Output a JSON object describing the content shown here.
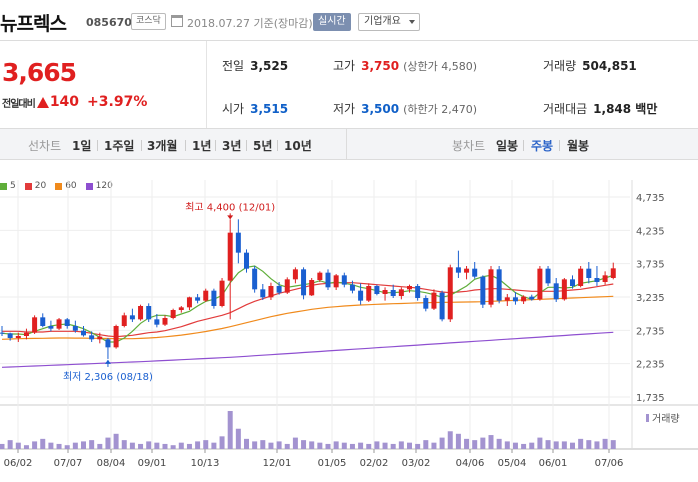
{
  "header": {
    "stock_name": "뉴프렉스",
    "stock_code": "085670",
    "market": "코스닥",
    "date_text": "2018.07.27  기준(장마감)",
    "realtime_button": "실시간",
    "info_select": "기업개요"
  },
  "quote": {
    "price": "3,665",
    "change_label": "전일대비",
    "change": "140",
    "change_pct": "+3.97%",
    "prev_close_label": "전일",
    "prev_close": "3,525",
    "open_label": "시가",
    "open": "3,515",
    "high_label": "고가",
    "high": "3,750",
    "upper_limit": "(상한가 4,580)",
    "low_label": "저가",
    "low": "3,500",
    "lower_limit": "(하한가 2,470)",
    "volume_label": "거래량",
    "volume": "504,851",
    "amount_label": "거래대금",
    "amount": "1,848 백만"
  },
  "toolbar": {
    "line_chart_label": "선차트",
    "periods": [
      "1일",
      "1주일",
      "3개월",
      "1년",
      "3년",
      "5년",
      "10년"
    ],
    "candle_label": "봉차트",
    "candle_options": [
      "일봉",
      "주봉",
      "월봉"
    ],
    "active_candle": "주봉"
  },
  "legend": [
    {
      "label": "5",
      "color": "#5fae3a"
    },
    {
      "label": "20",
      "color": "#e23b3b"
    },
    {
      "label": "60",
      "color": "#f08a1c"
    },
    {
      "label": "120",
      "color": "#8e4fd0"
    }
  ],
  "chart_data": {
    "type": "candlestick",
    "y_ticks": [
      "4,735",
      "4,235",
      "3,735",
      "3,235",
      "2,735",
      "2,235",
      "1,735"
    ],
    "ylim": [
      1735,
      4735
    ],
    "x_labels": [
      "06/02",
      "07/07",
      "08/04",
      "09/01",
      "10/13",
      "12/01",
      "01/05",
      "02/02",
      "03/02",
      "04/06",
      "05/04",
      "06/01",
      "07/06"
    ],
    "annotations": {
      "high": {
        "text": "최고 4,400 (12/01)",
        "value": 4400,
        "week": 28
      },
      "low": {
        "text": "최저 2,306 (08/18)",
        "value": 2306,
        "week": 13
      }
    },
    "candles": [
      [
        2700,
        2800,
        2650,
        2690
      ],
      [
        2690,
        2700,
        2580,
        2620
      ],
      [
        2620,
        2700,
        2560,
        2650
      ],
      [
        2650,
        2760,
        2600,
        2700
      ],
      [
        2700,
        2960,
        2680,
        2930
      ],
      [
        2930,
        2990,
        2780,
        2800
      ],
      [
        2800,
        2880,
        2720,
        2760
      ],
      [
        2760,
        2920,
        2740,
        2900
      ],
      [
        2900,
        2920,
        2760,
        2800
      ],
      [
        2800,
        2880,
        2700,
        2730
      ],
      [
        2730,
        2800,
        2640,
        2660
      ],
      [
        2660,
        2720,
        2560,
        2600
      ],
      [
        2600,
        2700,
        2540,
        2640
      ],
      [
        2600,
        2620,
        2306,
        2480
      ],
      [
        2480,
        2820,
        2460,
        2800
      ],
      [
        2800,
        3000,
        2780,
        2960
      ],
      [
        2960,
        3060,
        2860,
        2900
      ],
      [
        2900,
        3120,
        2880,
        3100
      ],
      [
        3100,
        3140,
        2860,
        2900
      ],
      [
        2900,
        2980,
        2780,
        2820
      ],
      [
        2820,
        2960,
        2800,
        2920
      ],
      [
        2920,
        3060,
        2900,
        3040
      ],
      [
        3040,
        3100,
        3000,
        3080
      ],
      [
        3080,
        3240,
        3040,
        3230
      ],
      [
        3230,
        3280,
        3140,
        3180
      ],
      [
        3180,
        3360,
        3160,
        3330
      ],
      [
        3330,
        3360,
        3060,
        3100
      ],
      [
        3100,
        3520,
        3080,
        3480
      ],
      [
        3480,
        4400,
        2900,
        4200
      ],
      [
        4200,
        4400,
        3740,
        3900
      ],
      [
        3900,
        3950,
        3600,
        3660
      ],
      [
        3660,
        3700,
        3300,
        3350
      ],
      [
        3350,
        3430,
        3190,
        3230
      ],
      [
        3230,
        3450,
        3190,
        3400
      ],
      [
        3400,
        3460,
        3270,
        3300
      ],
      [
        3300,
        3530,
        3280,
        3500
      ],
      [
        3500,
        3680,
        3440,
        3650
      ],
      [
        3650,
        3680,
        3200,
        3260
      ],
      [
        3260,
        3520,
        3250,
        3490
      ],
      [
        3490,
        3620,
        3460,
        3600
      ],
      [
        3600,
        3650,
        3340,
        3380
      ],
      [
        3380,
        3580,
        3340,
        3560
      ],
      [
        3560,
        3600,
        3380,
        3420
      ],
      [
        3420,
        3480,
        3290,
        3330
      ],
      [
        3330,
        3440,
        3120,
        3180
      ],
      [
        3180,
        3440,
        3160,
        3400
      ],
      [
        3400,
        3420,
        3260,
        3280
      ],
      [
        3280,
        3380,
        3180,
        3340
      ],
      [
        3340,
        3420,
        3220,
        3250
      ],
      [
        3250,
        3380,
        3200,
        3350
      ],
      [
        3350,
        3420,
        3300,
        3400
      ],
      [
        3400,
        3430,
        3180,
        3220
      ],
      [
        3220,
        3260,
        3020,
        3060
      ],
      [
        3060,
        3350,
        3040,
        3300
      ],
      [
        3300,
        3330,
        2870,
        2900
      ],
      [
        2900,
        3720,
        2860,
        3680
      ],
      [
        3680,
        3930,
        3520,
        3600
      ],
      [
        3600,
        3700,
        3500,
        3660
      ],
      [
        3660,
        3760,
        3510,
        3540
      ],
      [
        3540,
        3560,
        3070,
        3120
      ],
      [
        3120,
        3700,
        3080,
        3650
      ],
      [
        3650,
        3700,
        3140,
        3180
      ],
      [
        3180,
        3280,
        3100,
        3230
      ],
      [
        3230,
        3310,
        3120,
        3170
      ],
      [
        3170,
        3260,
        3130,
        3240
      ],
      [
        3240,
        3270,
        3180,
        3200
      ],
      [
        3200,
        3700,
        3180,
        3660
      ],
      [
        3660,
        3700,
        3400,
        3440
      ],
      [
        3440,
        3520,
        3160,
        3200
      ],
      [
        3200,
        3520,
        3180,
        3500
      ],
      [
        3500,
        3560,
        3360,
        3400
      ],
      [
        3400,
        3700,
        3380,
        3660
      ],
      [
        3660,
        3760,
        3440,
        3520
      ],
      [
        3520,
        3700,
        3400,
        3460
      ],
      [
        3460,
        3620,
        3420,
        3560
      ],
      [
        3520,
        3750,
        3500,
        3665
      ]
    ],
    "ma5": [
      2690,
      2680,
      2680,
      2670,
      2720,
      2760,
      2800,
      2820,
      2830,
      2800,
      2760,
      2700,
      2630,
      2560,
      2560,
      2620,
      2720,
      2840,
      2920,
      2960,
      2960,
      2940,
      2980,
      3020,
      3100,
      3170,
      3200,
      3260,
      3450,
      3600,
      3680,
      3700,
      3620,
      3510,
      3420,
      3380,
      3400,
      3420,
      3440,
      3480,
      3440,
      3460,
      3440,
      3420,
      3380,
      3360,
      3330,
      3300,
      3300,
      3310,
      3330,
      3320,
      3300,
      3270,
      3230,
      3260,
      3330,
      3400,
      3500,
      3540,
      3560,
      3500,
      3400,
      3300,
      3240,
      3200,
      3300,
      3380,
      3380,
      3370,
      3380,
      3440,
      3460,
      3480,
      3520,
      3560
    ],
    "ma20": [
      2720,
      2720,
      2720,
      2710,
      2710,
      2710,
      2720,
      2720,
      2720,
      2720,
      2710,
      2690,
      2670,
      2650,
      2640,
      2650,
      2660,
      2680,
      2700,
      2710,
      2730,
      2760,
      2790,
      2830,
      2870,
      2900,
      2930,
      2960,
      3000,
      3060,
      3120,
      3170,
      3210,
      3250,
      3290,
      3320,
      3350,
      3380,
      3410,
      3430,
      3440,
      3450,
      3450,
      3450,
      3440,
      3430,
      3420,
      3410,
      3400,
      3390,
      3380,
      3370,
      3350,
      3330,
      3310,
      3300,
      3310,
      3320,
      3340,
      3350,
      3360,
      3360,
      3350,
      3340,
      3330,
      3320,
      3320,
      3320,
      3320,
      3330,
      3340,
      3350,
      3370,
      3390,
      3410,
      3430
    ],
    "ma60": [
      2600,
      2605,
      2610,
      2612,
      2614,
      2616,
      2618,
      2620,
      2620,
      2619,
      2618,
      2616,
      2614,
      2612,
      2610,
      2609,
      2610,
      2614,
      2620,
      2628,
      2638,
      2650,
      2664,
      2680,
      2698,
      2718,
      2740,
      2762,
      2790,
      2820,
      2850,
      2880,
      2910,
      2940,
      2965,
      2990,
      3010,
      3030,
      3050,
      3065,
      3080,
      3090,
      3100,
      3108,
      3115,
      3120,
      3125,
      3130,
      3134,
      3138,
      3142,
      3146,
      3150,
      3152,
      3154,
      3156,
      3158,
      3160,
      3162,
      3165,
      3170,
      3175,
      3180,
      3185,
      3190,
      3195,
      3200,
      3205,
      3210,
      3215,
      3220,
      3225,
      3230,
      3235,
      3240,
      3245
    ],
    "ma120": [
      2180,
      2185,
      2190,
      2195,
      2200,
      2205,
      2210,
      2215,
      2220,
      2225,
      2230,
      2235,
      2240,
      2245,
      2250,
      2255,
      2260,
      2265,
      2270,
      2276,
      2282,
      2288,
      2294,
      2300,
      2306,
      2312,
      2318,
      2324,
      2330,
      2338,
      2346,
      2354,
      2362,
      2370,
      2378,
      2386,
      2394,
      2402,
      2410,
      2418,
      2426,
      2434,
      2442,
      2450,
      2458,
      2466,
      2474,
      2482,
      2490,
      2498,
      2506,
      2514,
      2522,
      2530,
      2538,
      2546,
      2554,
      2562,
      2570,
      2578,
      2586,
      2594,
      2602,
      2610,
      2618,
      2626,
      2634,
      2642,
      2650,
      2658,
      2666,
      2674,
      2682,
      2690,
      2698,
      2706
    ],
    "volume": [
      4,
      7,
      5,
      3,
      6,
      8,
      5,
      4,
      3,
      5,
      6,
      7,
      4,
      9,
      12,
      7,
      5,
      4,
      6,
      5,
      4,
      3,
      5,
      4,
      6,
      7,
      5,
      10,
      30,
      16,
      8,
      6,
      7,
      5,
      6,
      4,
      9,
      7,
      6,
      5,
      4,
      6,
      5,
      4,
      5,
      4,
      6,
      5,
      4,
      6,
      5,
      4,
      7,
      5,
      9,
      14,
      12,
      8,
      7,
      9,
      11,
      8,
      6,
      5,
      4,
      5,
      9,
      7,
      6,
      6,
      5,
      8,
      7,
      6,
      8,
      7
    ],
    "volume_label": "거래량"
  }
}
